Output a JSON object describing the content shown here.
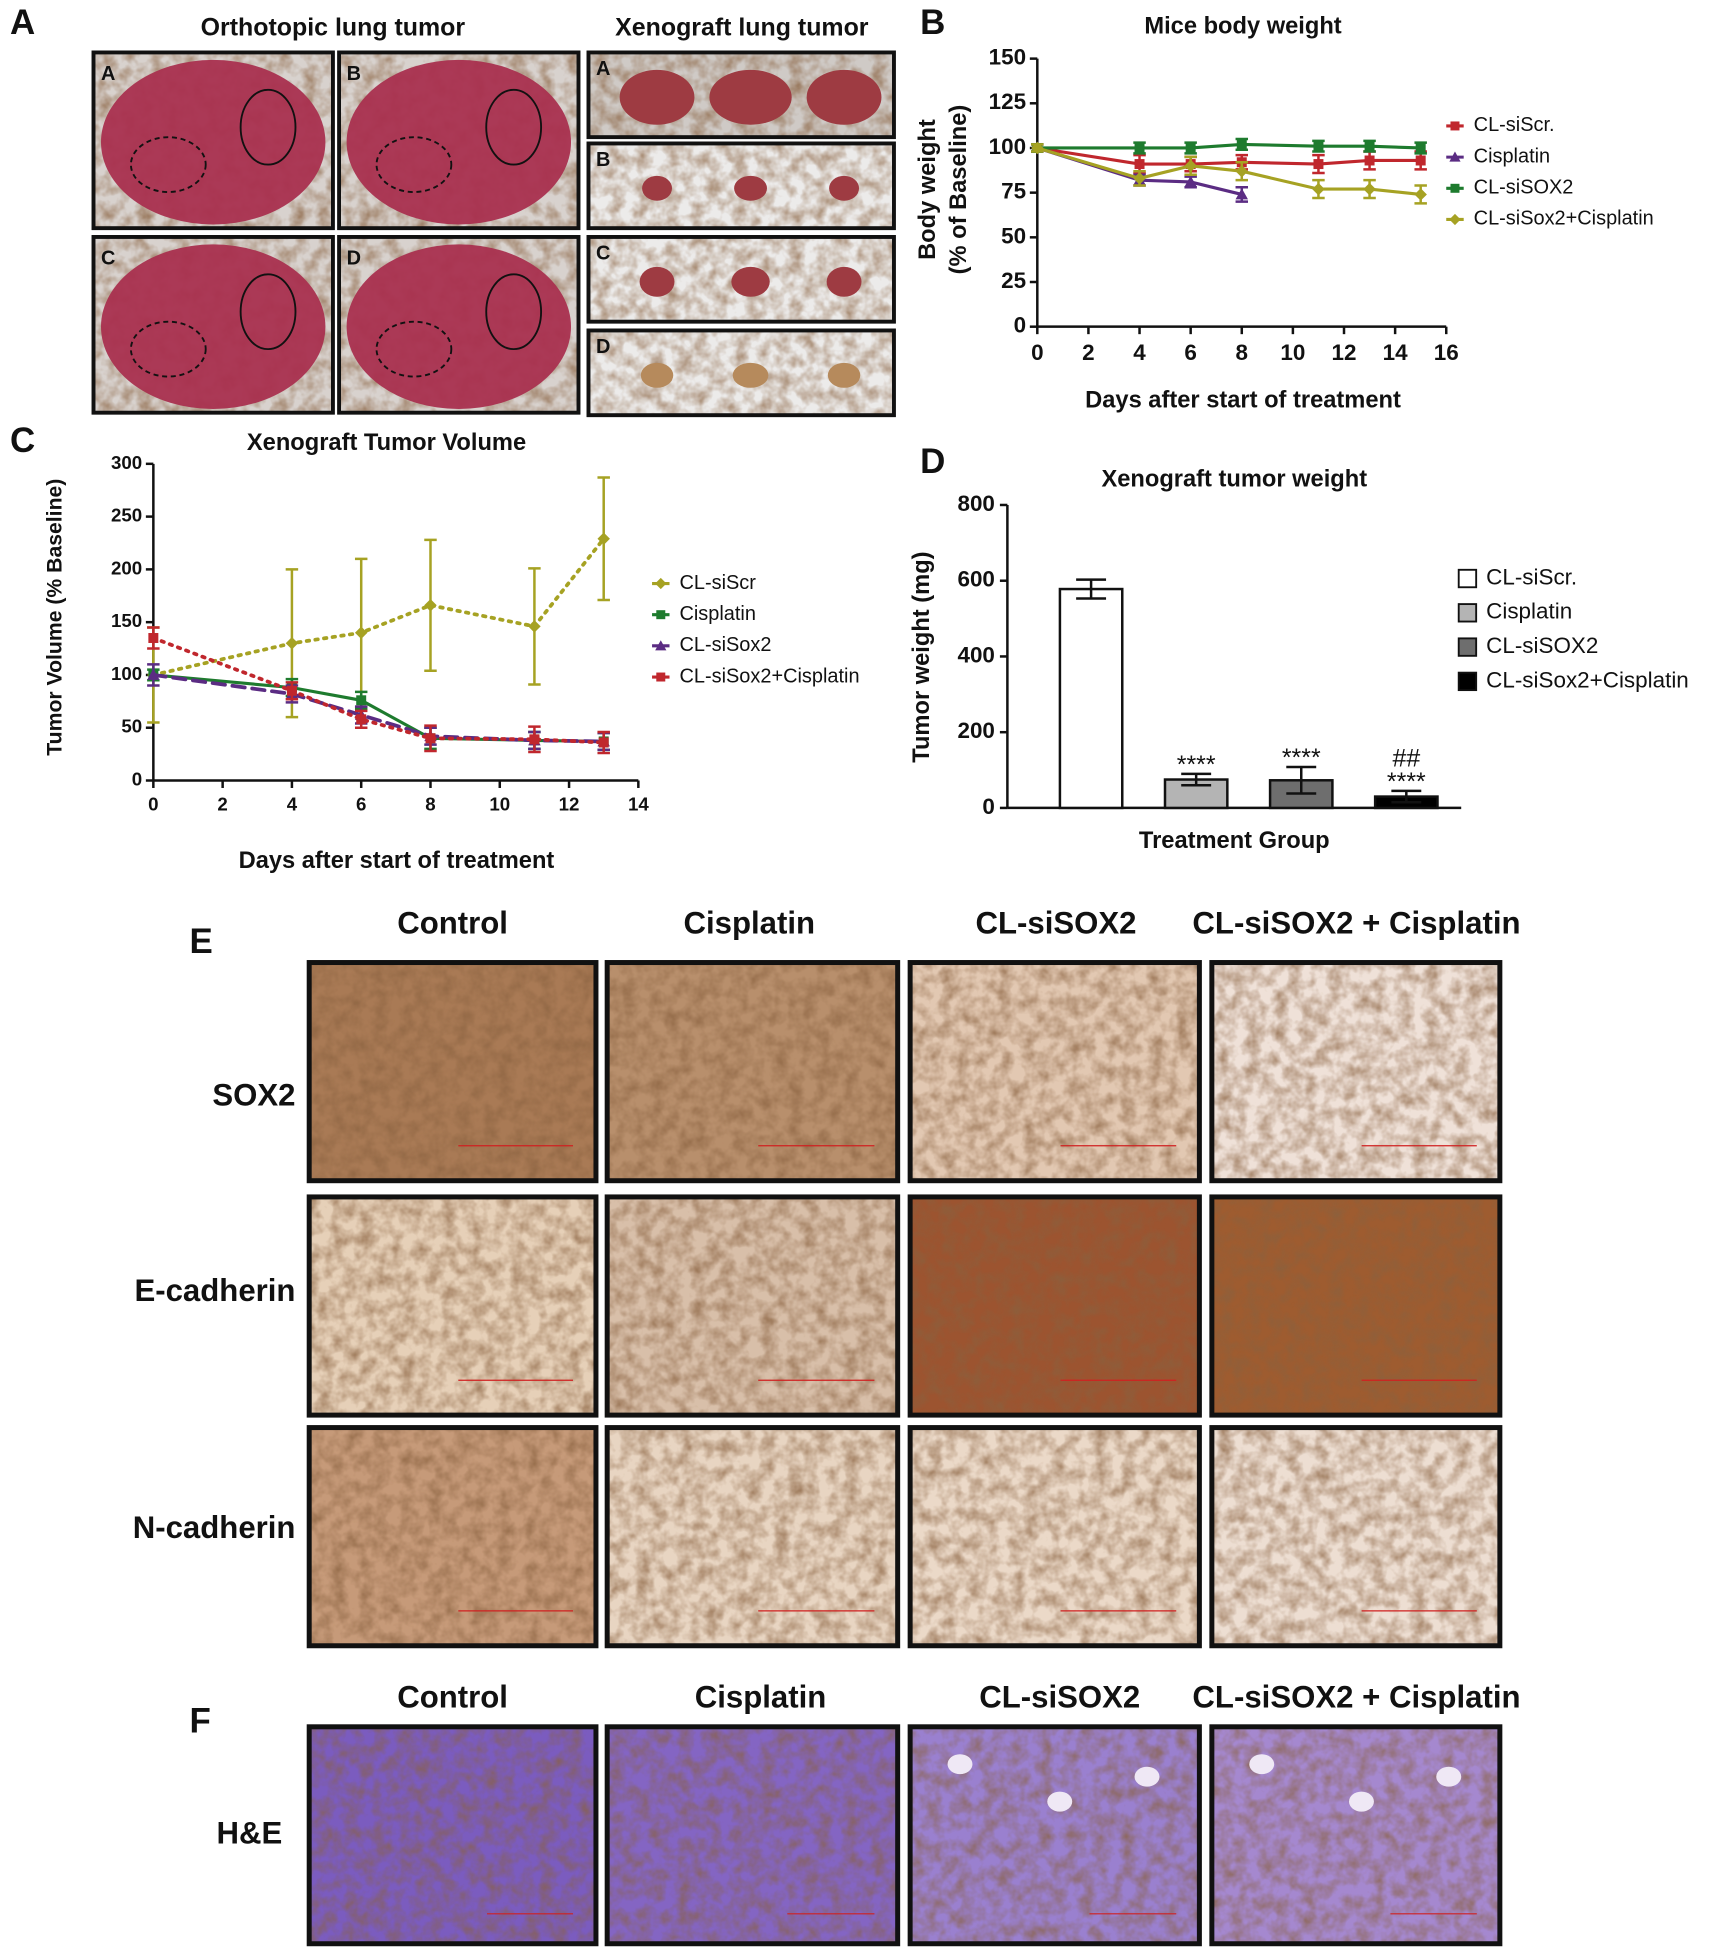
{
  "chart_data": [
    {
      "type": "line",
      "title": "Mice body weight",
      "xlabel": "Days after start of treatment",
      "ylabel": [
        "Body weight",
        "(% of Baseline)"
      ],
      "xlim": [
        0,
        16
      ],
      "xticks": [
        0,
        2,
        4,
        6,
        8,
        10,
        12,
        14,
        16
      ],
      "ylim": [
        0,
        150
      ],
      "yticks": [
        0,
        25,
        50,
        75,
        100,
        125,
        150
      ],
      "series": [
        {
          "name": "CL-siScr.",
          "color": "#c0272d",
          "style": "solid",
          "marker": "square",
          "x": [
            0,
            4,
            6,
            8,
            11,
            13,
            15
          ],
          "values": [
            100,
            91,
            91,
            92,
            91,
            93,
            93
          ],
          "errors": [
            2,
            5,
            4,
            4,
            5,
            5,
            5
          ]
        },
        {
          "name": "Cisplatin",
          "color": "#5b2c83",
          "style": "solid",
          "marker": "triangle",
          "x": [
            0,
            4,
            6,
            8
          ],
          "values": [
            100,
            82,
            81,
            74
          ],
          "errors": [
            2,
            3,
            3,
            4
          ]
        },
        {
          "name": "CL-siSOX2",
          "color": "#1e7b2e",
          "style": "solid",
          "marker": "square",
          "x": [
            0,
            4,
            6,
            8,
            11,
            13,
            15
          ],
          "values": [
            100,
            100,
            100,
            102,
            101,
            101,
            100
          ],
          "errors": [
            2,
            3,
            3,
            3,
            3,
            3,
            3
          ]
        },
        {
          "name": "CL-siSox2+Cisplatin",
          "color": "#a6a223",
          "style": "solid",
          "marker": "diamond",
          "x": [
            0,
            4,
            6,
            8,
            11,
            13,
            15
          ],
          "values": [
            100,
            83,
            90,
            87,
            77,
            77,
            74
          ],
          "errors": [
            2,
            4,
            5,
            5,
            5,
            5,
            5
          ]
        }
      ]
    },
    {
      "type": "line",
      "title": "Xenograft Tumor Volume",
      "xlabel": "Days after start of treatment",
      "ylabel": "Tumor Volume (% Baseline)",
      "xlim": [
        0,
        14
      ],
      "xticks": [
        0,
        2,
        4,
        6,
        8,
        10,
        12,
        14
      ],
      "ylim": [
        0,
        300
      ],
      "yticks": [
        0,
        50,
        100,
        150,
        200,
        250,
        300
      ],
      "series": [
        {
          "name": "CL-siScr",
          "color": "#a6a223",
          "style": "dotted",
          "marker": "diamond",
          "x": [
            0,
            4,
            6,
            8,
            11,
            13
          ],
          "values": [
            100,
            130,
            140,
            166,
            146,
            229
          ],
          "errors": [
            45,
            70,
            70,
            62,
            55,
            58
          ]
        },
        {
          "name": "Cisplatin",
          "color": "#1e7b2e",
          "style": "solid",
          "marker": "square",
          "x": [
            0,
            4,
            6,
            8,
            11,
            13
          ],
          "values": [
            100,
            88,
            76,
            40,
            38,
            37
          ],
          "errors": [
            5,
            8,
            8,
            10,
            8,
            8
          ]
        },
        {
          "name": "CL-siSox2",
          "color": "#5b2c83",
          "style": "dashed",
          "marker": "triangle",
          "x": [
            0,
            4,
            6,
            8,
            11,
            13
          ],
          "values": [
            100,
            82,
            62,
            42,
            38,
            37
          ],
          "errors": [
            10,
            8,
            8,
            8,
            8,
            8
          ]
        },
        {
          "name": "CL-siSox2+Cisplatin",
          "color": "#c0272d",
          "style": "dotted",
          "marker": "square",
          "x": [
            0,
            4,
            6,
            8,
            11,
            13
          ],
          "values": [
            135,
            85,
            58,
            40,
            39,
            36
          ],
          "errors": [
            10,
            8,
            8,
            12,
            12,
            10
          ]
        }
      ]
    },
    {
      "type": "bar",
      "title": "Xenograft tumor weight",
      "xlabel": "Treatment Group",
      "ylabel": "Tumor weight (mg)",
      "categories": [
        "CL-siScr.",
        "Cisplatin",
        "CL-siSOX2",
        "CL-siSox2+Cisplatin"
      ],
      "values": [
        578,
        75,
        73,
        30
      ],
      "errors": [
        25,
        15,
        35,
        15
      ],
      "colors": [
        "#ffffff",
        "#b4b4b4",
        "#6e6e6e",
        "#000000"
      ],
      "ylim": [
        0,
        800
      ],
      "yticks": [
        0,
        200,
        400,
        600,
        800
      ],
      "annotations": [
        {
          "category": "Cisplatin",
          "lines": [
            "****"
          ]
        },
        {
          "category": "CL-siSOX2",
          "lines": [
            "****"
          ]
        },
        {
          "category": "CL-siSox2+Cisplatin",
          "lines": [
            "##",
            "****"
          ]
        }
      ]
    }
  ],
  "panels": {
    "letters": [
      "A",
      "B",
      "C",
      "D",
      "E",
      "F"
    ],
    "orthotopic": {
      "title": "Orthotopic lung tumor",
      "labels": [
        "A",
        "B",
        "C",
        "D"
      ]
    },
    "xenograft": {
      "title": "Xenograft lung tumor",
      "labels": [
        "A",
        "B",
        "C",
        "D"
      ]
    },
    "ihc": {
      "columns": [
        "Control",
        "Cisplatin",
        "CL-siSOX2",
        "CL-siSOX2 + Cisplatin"
      ],
      "rows": [
        "SOX2",
        "E-cadherin",
        "N-cadherin"
      ]
    },
    "he": {
      "columns": [
        "Control",
        "Cisplatin",
        "CL-siSOX2",
        "CL-siSOX2 + Cisplatin"
      ],
      "rows": [
        "H&E"
      ]
    }
  }
}
